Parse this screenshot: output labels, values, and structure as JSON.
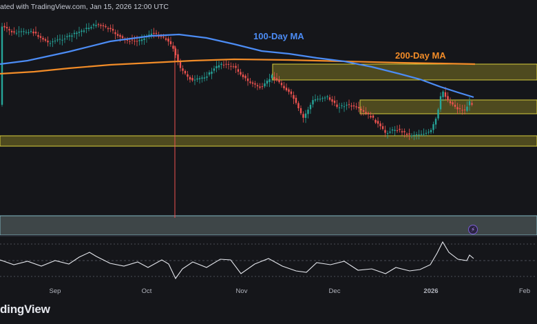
{
  "header": {
    "text": "ated with TradingView.com, Jan 15, 2026 12:00 UTC"
  },
  "footer": {
    "logo_text": "dingView"
  },
  "icons": {
    "alert": "lightning-bolt-icon"
  },
  "colors": {
    "bull": "#26a69a",
    "bear": "#ef5350",
    "ma100": "#4c8cf5",
    "ma200": "#f28c28",
    "zone_fill": "rgba(170,160,40,0.38)",
    "zone_edge": "#d8cf3c",
    "support_fill": "rgba(140,160,160,0.35)",
    "rsi": "#e6e8ee"
  },
  "chart_data": {
    "type": "candlestick",
    "annotations": {
      "ma100_label": "100-Day MA",
      "ma200_label": "200-Day MA"
    },
    "xaxis": {
      "ticks": [
        "Sep",
        "Oct",
        "Nov",
        "Dec",
        "2026",
        "Feb"
      ]
    },
    "ma100": [
      [
        0,
        93
      ],
      [
        40,
        88
      ],
      [
        100,
        75
      ],
      [
        160,
        60
      ],
      [
        220,
        52
      ],
      [
        260,
        50
      ],
      [
        300,
        55
      ],
      [
        340,
        64
      ],
      [
        380,
        74
      ],
      [
        420,
        78
      ],
      [
        460,
        84
      ],
      [
        500,
        89
      ],
      [
        540,
        97
      ],
      [
        580,
        107
      ],
      [
        610,
        115
      ],
      [
        640,
        126
      ],
      [
        665,
        134
      ],
      [
        688,
        141
      ]
    ],
    "ma200": [
      [
        0,
        107
      ],
      [
        50,
        104
      ],
      [
        100,
        99
      ],
      [
        160,
        94
      ],
      [
        220,
        91
      ],
      [
        280,
        88
      ],
      [
        340,
        86
      ],
      [
        420,
        87
      ],
      [
        500,
        89
      ],
      [
        580,
        91
      ],
      [
        640,
        92
      ],
      [
        690,
        93
      ]
    ],
    "zones": [
      {
        "name": "resistance-zone",
        "x1": 396,
        "x2": 780,
        "y1": 93,
        "y2": 116
      },
      {
        "name": "current-zone",
        "x1": 523,
        "x2": 780,
        "y1": 145,
        "y2": 165
      },
      {
        "name": "support-zone",
        "x1": 0,
        "x2": 780,
        "y1": 197,
        "y2": 212
      },
      {
        "name": "lower-zone",
        "x1": 0,
        "x2": 780,
        "y1": 313,
        "y2": 341
      }
    ],
    "rsi_levels": [
      354,
      378,
      401
    ],
    "rsi": [
      [
        0,
        377
      ],
      [
        20,
        384
      ],
      [
        40,
        379
      ],
      [
        60,
        386
      ],
      [
        80,
        378
      ],
      [
        100,
        383
      ],
      [
        115,
        373
      ],
      [
        130,
        366
      ],
      [
        140,
        372
      ],
      [
        160,
        382
      ],
      [
        180,
        386
      ],
      [
        200,
        380
      ],
      [
        215,
        388
      ],
      [
        235,
        377
      ],
      [
        245,
        383
      ],
      [
        255,
        404
      ],
      [
        265,
        390
      ],
      [
        280,
        380
      ],
      [
        300,
        388
      ],
      [
        320,
        376
      ],
      [
        335,
        377
      ],
      [
        350,
        397
      ],
      [
        370,
        383
      ],
      [
        390,
        375
      ],
      [
        410,
        386
      ],
      [
        430,
        393
      ],
      [
        445,
        395
      ],
      [
        460,
        381
      ],
      [
        480,
        384
      ],
      [
        500,
        379
      ],
      [
        520,
        392
      ],
      [
        540,
        390
      ],
      [
        560,
        397
      ],
      [
        575,
        388
      ],
      [
        595,
        393
      ],
      [
        610,
        391
      ],
      [
        625,
        384
      ],
      [
        635,
        367
      ],
      [
        643,
        351
      ],
      [
        652,
        366
      ],
      [
        665,
        376
      ],
      [
        678,
        378
      ],
      [
        682,
        370
      ],
      [
        688,
        375
      ]
    ]
  }
}
